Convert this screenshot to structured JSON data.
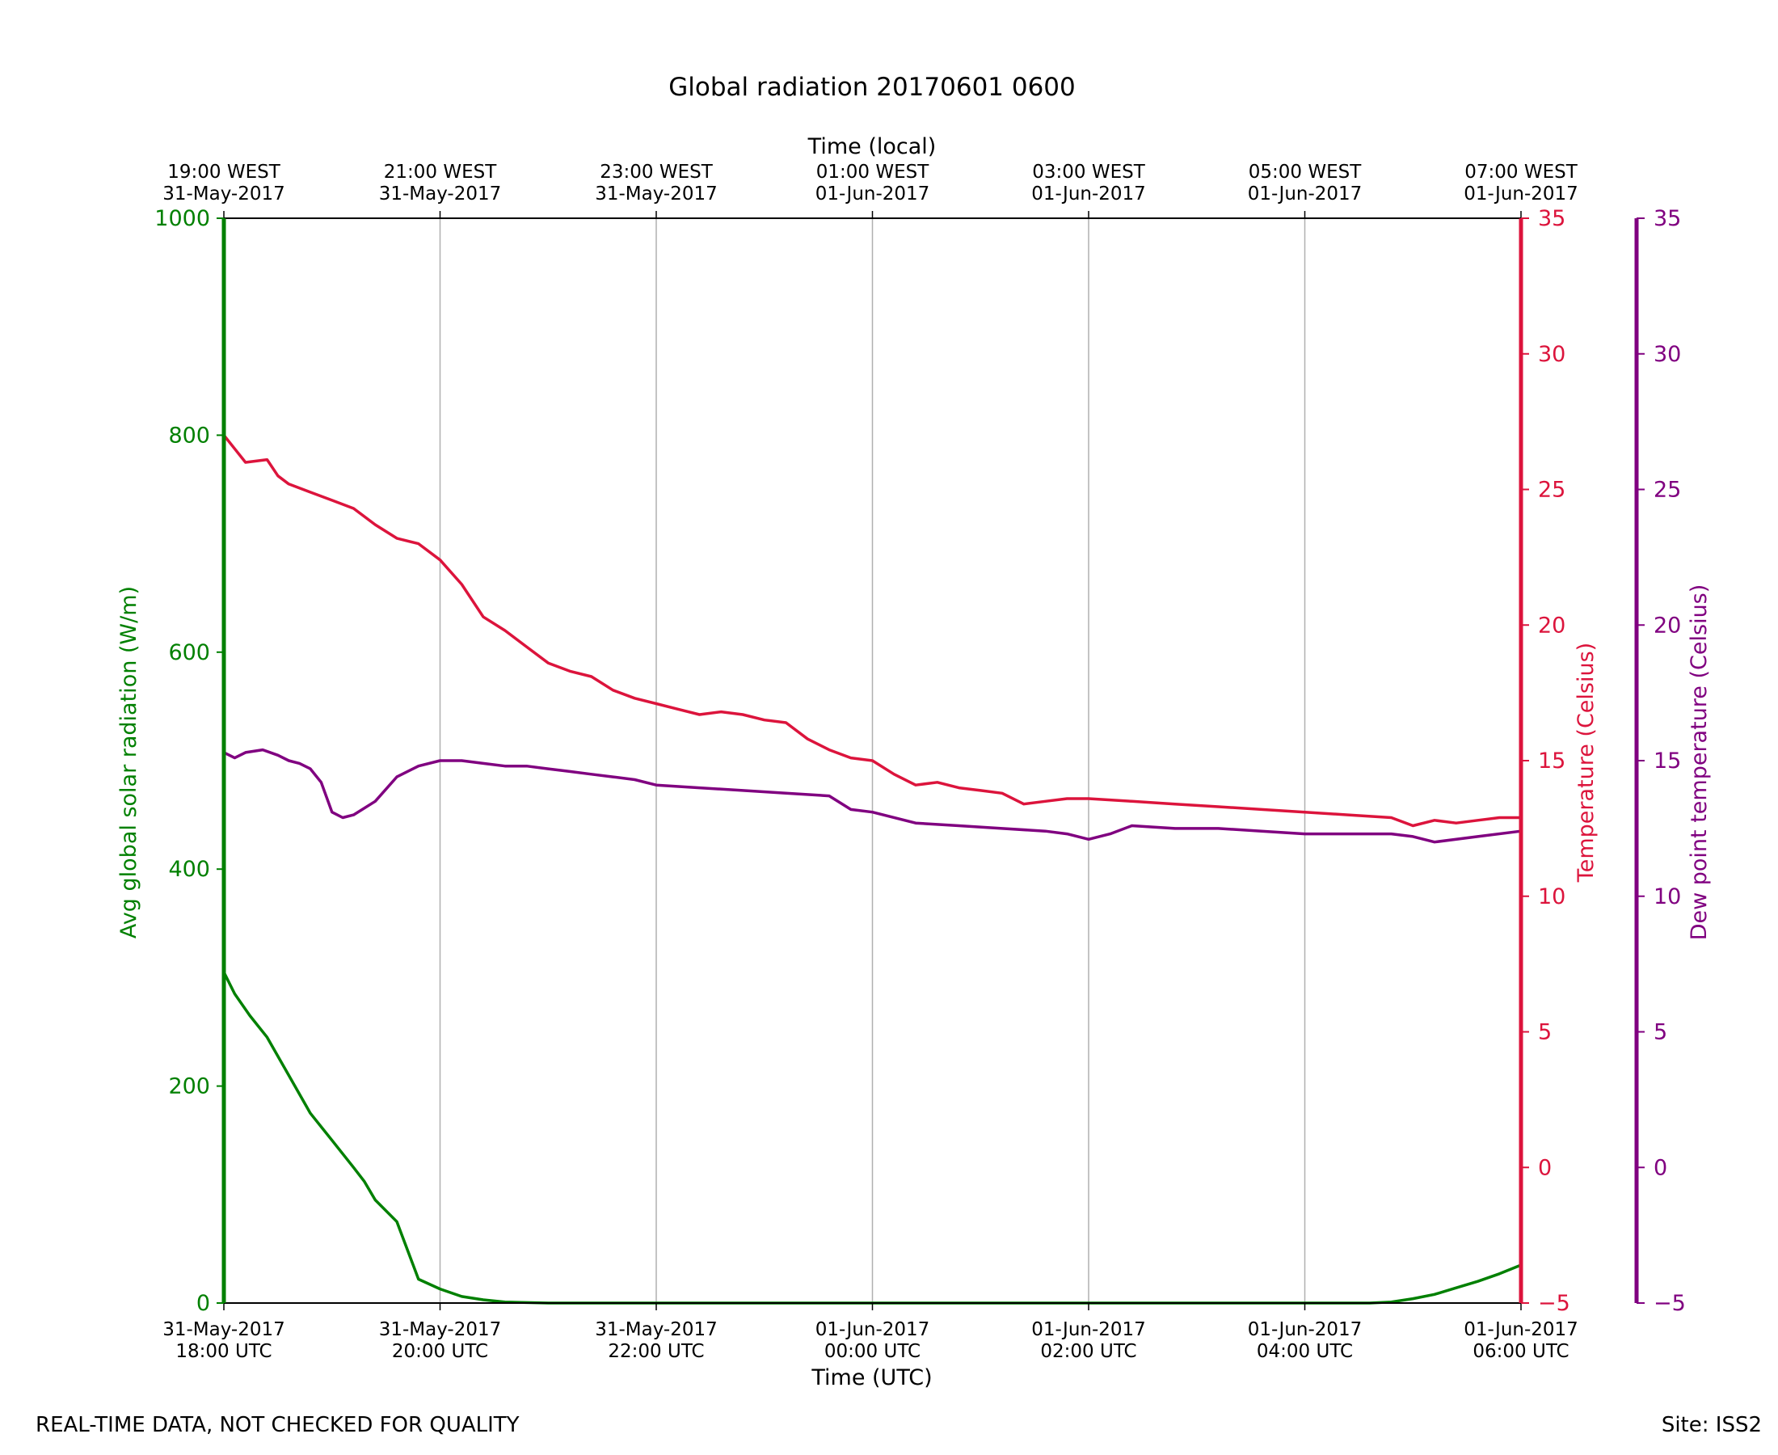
{
  "chart_data": {
    "type": "line",
    "title": "Global radiation 20170601 0600",
    "xlabel": "Time (UTC)",
    "x2label": "Time (local)",
    "xlim_hours_utc": [
      0,
      6
    ],
    "x_ticks_utc": [
      [
        "31-May-2017",
        "18:00 UTC"
      ],
      [
        "31-May-2017",
        "20:00 UTC"
      ],
      [
        "31-May-2017",
        "22:00 UTC"
      ],
      [
        "01-Jun-2017",
        "00:00 UTC"
      ],
      [
        "01-Jun-2017",
        "02:00 UTC"
      ],
      [
        "01-Jun-2017",
        "04:00 UTC"
      ],
      [
        "01-Jun-2017",
        "06:00 UTC"
      ]
    ],
    "x_ticks_local": [
      [
        "19:00 WEST",
        "31-May-2017"
      ],
      [
        "21:00 WEST",
        "31-May-2017"
      ],
      [
        "23:00 WEST",
        "31-May-2017"
      ],
      [
        "01:00 WEST",
        "01-Jun-2017"
      ],
      [
        "03:00 WEST",
        "01-Jun-2017"
      ],
      [
        "05:00 WEST",
        "01-Jun-2017"
      ],
      [
        "07:00 WEST",
        "01-Jun-2017"
      ]
    ],
    "grid_x": true,
    "axes": {
      "radiation": {
        "label": "Avg global solar radiation (W/m)",
        "ylim": [
          0,
          1000
        ],
        "ticks": [
          0,
          200,
          400,
          600,
          800,
          1000
        ],
        "color": "#008000"
      },
      "temperature": {
        "label": "Temperature (Celsius)",
        "ylim": [
          -5,
          35
        ],
        "ticks": [
          -5,
          0,
          5,
          10,
          15,
          20,
          25,
          30,
          35
        ],
        "color": "#dc143c"
      },
      "dewpoint": {
        "label": "Dew point temperature (Celsius)",
        "ylim": [
          -5,
          35
        ],
        "ticks": [
          -5,
          0,
          5,
          10,
          15,
          20,
          25,
          30,
          35
        ],
        "color": "#800080"
      }
    },
    "series": [
      {
        "name": "Avg global solar radiation",
        "axis": "radiation",
        "color": "#008000",
        "x": [
          0,
          0.05,
          0.12,
          0.2,
          0.3,
          0.4,
          0.5,
          0.6,
          0.65,
          0.7,
          0.8,
          0.9,
          1.0,
          1.1,
          1.2,
          1.3,
          1.5,
          2.0,
          3.0,
          4.0,
          5.0,
          5.3,
          5.4,
          5.5,
          5.6,
          5.7,
          5.8,
          5.9,
          6.0
        ],
        "y": [
          305,
          285,
          265,
          245,
          210,
          175,
          150,
          125,
          112,
          95,
          75,
          22,
          13,
          6,
          3,
          1,
          0,
          0,
          0,
          0,
          0,
          0,
          1,
          4,
          8,
          14,
          20,
          27,
          35
        ]
      },
      {
        "name": "Temperature",
        "axis": "temperature",
        "color": "#dc143c",
        "x": [
          0,
          0.05,
          0.1,
          0.2,
          0.25,
          0.3,
          0.4,
          0.5,
          0.6,
          0.7,
          0.8,
          0.9,
          1.0,
          1.1,
          1.2,
          1.3,
          1.4,
          1.5,
          1.6,
          1.7,
          1.8,
          1.9,
          2.0,
          2.1,
          2.2,
          2.3,
          2.4,
          2.5,
          2.6,
          2.7,
          2.8,
          2.9,
          3.0,
          3.1,
          3.2,
          3.3,
          3.4,
          3.5,
          3.6,
          3.7,
          3.8,
          3.9,
          4.0,
          4.2,
          4.4,
          4.6,
          4.8,
          5.0,
          5.2,
          5.4,
          5.5,
          5.6,
          5.7,
          5.8,
          5.9,
          6.0
        ],
        "y": [
          27.0,
          26.5,
          26.0,
          26.1,
          25.5,
          25.2,
          24.9,
          24.6,
          24.3,
          23.7,
          23.2,
          23.0,
          22.4,
          21.5,
          20.3,
          19.8,
          19.2,
          18.6,
          18.3,
          18.1,
          17.6,
          17.3,
          17.1,
          16.9,
          16.7,
          16.8,
          16.7,
          16.5,
          16.4,
          15.8,
          15.4,
          15.1,
          15.0,
          14.5,
          14.1,
          14.2,
          14.0,
          13.9,
          13.8,
          13.4,
          13.5,
          13.6,
          13.6,
          13.5,
          13.4,
          13.3,
          13.2,
          13.1,
          13.0,
          12.9,
          12.6,
          12.8,
          12.7,
          12.8,
          12.9,
          12.9
        ]
      },
      {
        "name": "Dew point temperature",
        "axis": "dewpoint",
        "color": "#800080",
        "x": [
          0,
          0.05,
          0.1,
          0.18,
          0.25,
          0.3,
          0.35,
          0.4,
          0.45,
          0.5,
          0.55,
          0.6,
          0.7,
          0.8,
          0.9,
          1.0,
          1.1,
          1.2,
          1.3,
          1.4,
          1.5,
          1.6,
          1.7,
          1.8,
          1.9,
          2.0,
          2.2,
          2.4,
          2.6,
          2.8,
          2.9,
          3.0,
          3.2,
          3.4,
          3.6,
          3.8,
          3.9,
          4.0,
          4.1,
          4.2,
          4.4,
          4.6,
          4.8,
          5.0,
          5.2,
          5.4,
          5.5,
          5.6,
          5.8,
          6.0
        ],
        "y": [
          15.3,
          15.1,
          15.3,
          15.4,
          15.2,
          15.0,
          14.9,
          14.7,
          14.2,
          13.1,
          12.9,
          13.0,
          13.5,
          14.4,
          14.8,
          15.0,
          15.0,
          14.9,
          14.8,
          14.8,
          14.7,
          14.6,
          14.5,
          14.4,
          14.3,
          14.1,
          14.0,
          13.9,
          13.8,
          13.7,
          13.2,
          13.1,
          12.7,
          12.6,
          12.5,
          12.4,
          12.3,
          12.1,
          12.3,
          12.6,
          12.5,
          12.5,
          12.4,
          12.3,
          12.3,
          12.3,
          12.2,
          12.0,
          12.2,
          12.4
        ]
      }
    ]
  },
  "footer": {
    "left": "REAL-TIME DATA, NOT CHECKED FOR QUALITY",
    "right": "Site: ISS2"
  }
}
